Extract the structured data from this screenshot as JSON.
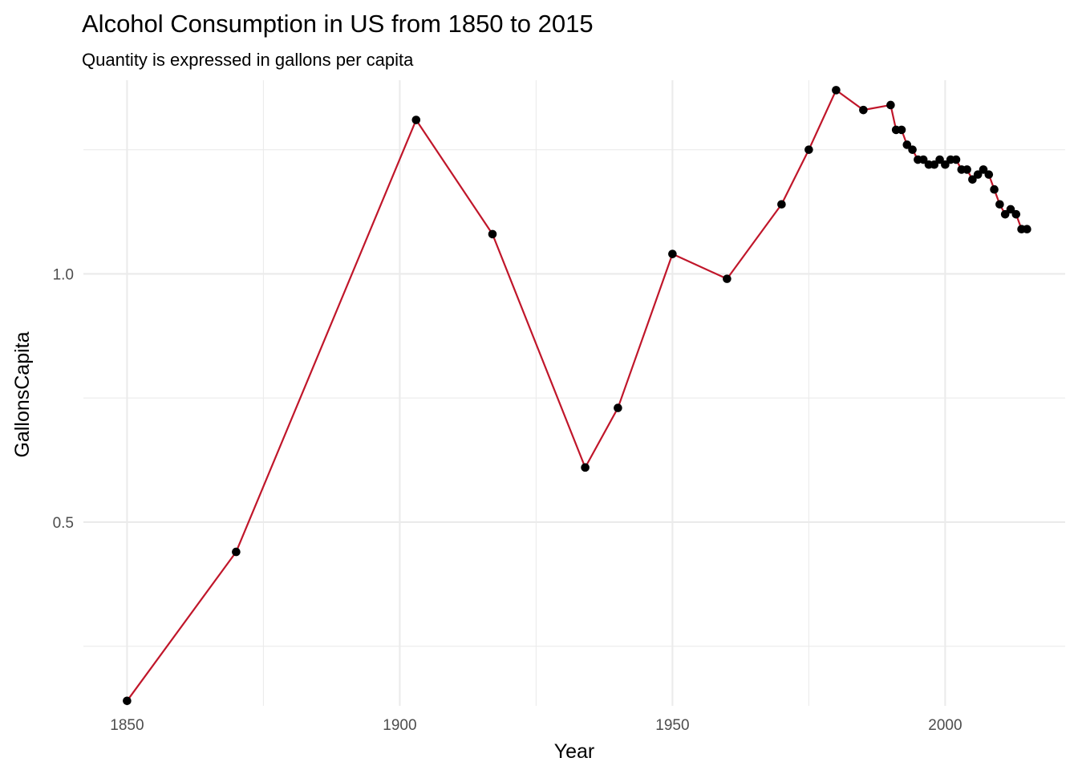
{
  "chart_data": {
    "type": "line",
    "title": "Alcohol Consumption in US from 1850 to 2015",
    "subtitle": "Quantity is expressed in gallons per capita",
    "xlabel": "Year",
    "ylabel": "GallonsCapita",
    "xlim": [
      1842,
      2022
    ],
    "ylim": [
      0.13,
      1.39
    ],
    "x_ticks": [
      1850,
      1900,
      1950,
      2000
    ],
    "x_tick_labels": [
      "1850",
      "1900",
      "1950",
      "2000"
    ],
    "x_minor_ticks": [
      1875,
      1925,
      1975
    ],
    "y_ticks": [
      0.5,
      1.0
    ],
    "y_tick_labels": [
      "0.5",
      "1.0"
    ],
    "y_minor_ticks": [
      0.25,
      0.75,
      1.25
    ],
    "grid": true,
    "legend": "none",
    "line_color": "#c0162a",
    "point_color": "#000000",
    "series": [
      {
        "x": [
          1850,
          1870,
          1903,
          1917,
          1934,
          1940,
          1950,
          1960,
          1970,
          1975,
          1980,
          1985,
          1990,
          1991,
          1992,
          1993,
          1994,
          1995,
          1996,
          1997,
          1998,
          1999,
          2000,
          2001,
          2002,
          2003,
          2004,
          2005,
          2006,
          2007,
          2008,
          2009,
          2010,
          2011,
          2012,
          2013,
          2014,
          2015
        ],
        "y": [
          0.14,
          0.44,
          1.31,
          1.08,
          0.61,
          0.73,
          1.04,
          0.99,
          1.14,
          1.25,
          1.37,
          1.33,
          1.34,
          1.29,
          1.29,
          1.26,
          1.25,
          1.23,
          1.23,
          1.22,
          1.22,
          1.23,
          1.22,
          1.23,
          1.23,
          1.21,
          1.21,
          1.19,
          1.2,
          1.21,
          1.2,
          1.17,
          1.14,
          1.12,
          1.13,
          1.12,
          1.09,
          1.09
        ]
      }
    ]
  }
}
